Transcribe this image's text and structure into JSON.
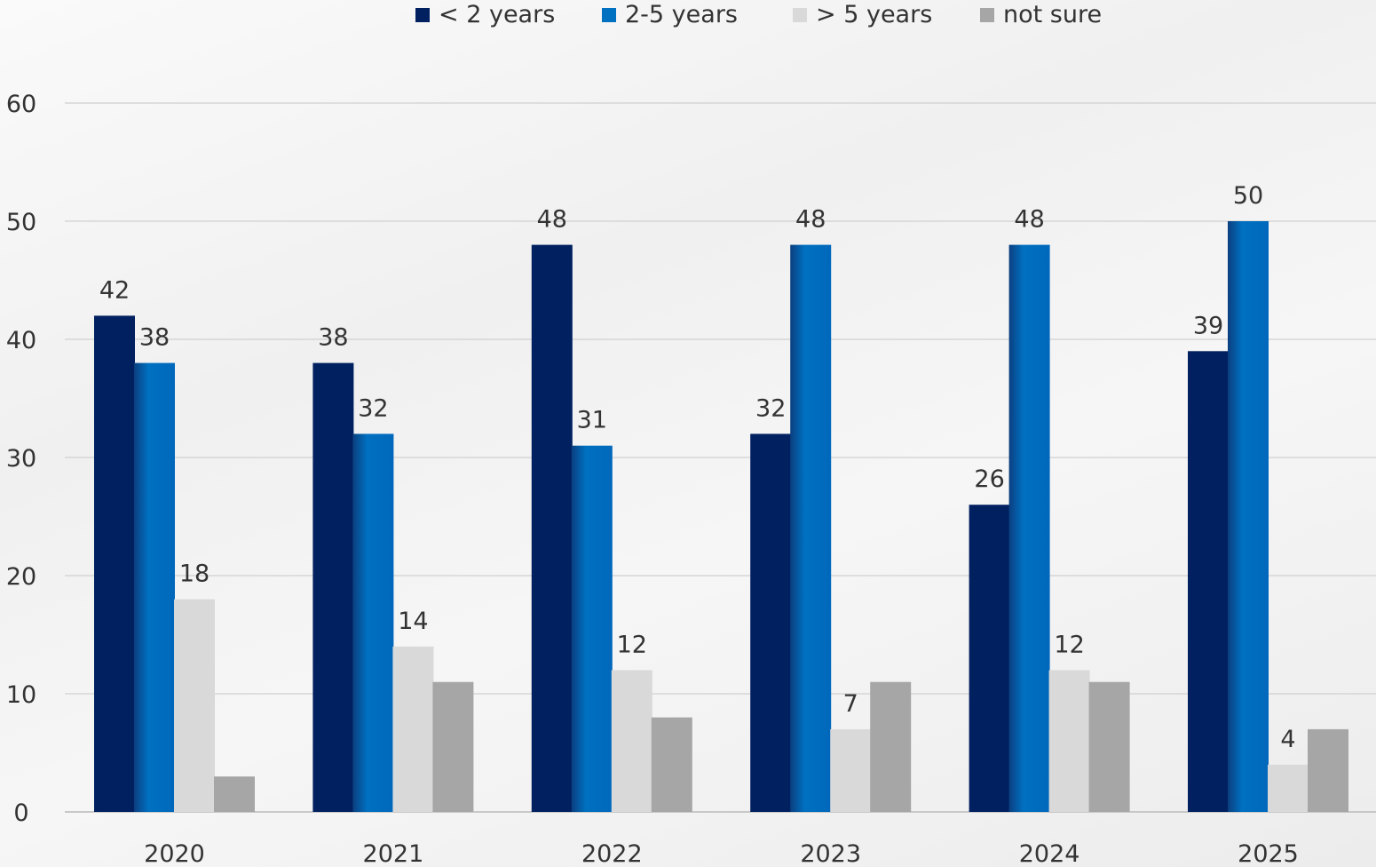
{
  "chart_data": {
    "type": "bar",
    "categories": [
      "2020",
      "2021",
      "2022",
      "2023",
      "2024",
      "2025"
    ],
    "series": [
      {
        "name": "< 2 years",
        "values": [
          42,
          38,
          48,
          32,
          26,
          39
        ],
        "color": "#002060",
        "show_labels": true
      },
      {
        "name": "2-5 years",
        "values": [
          38,
          32,
          31,
          48,
          48,
          50
        ],
        "color": "#0070C0",
        "show_labels": true
      },
      {
        "name": "> 5 years",
        "values": [
          18,
          14,
          12,
          7,
          12,
          4
        ],
        "color": "#D9D9D9",
        "show_labels": true
      },
      {
        "name": "not sure",
        "values": [
          3,
          11,
          8,
          11,
          11,
          7
        ],
        "color": "#A6A6A6",
        "show_labels": false
      }
    ],
    "ylim": [
      0,
      60
    ],
    "yticks": [
      0,
      10,
      20,
      30,
      40,
      50,
      60
    ],
    "grid": true,
    "legend_position": "top",
    "title": "",
    "xlabel": "",
    "ylabel": ""
  }
}
